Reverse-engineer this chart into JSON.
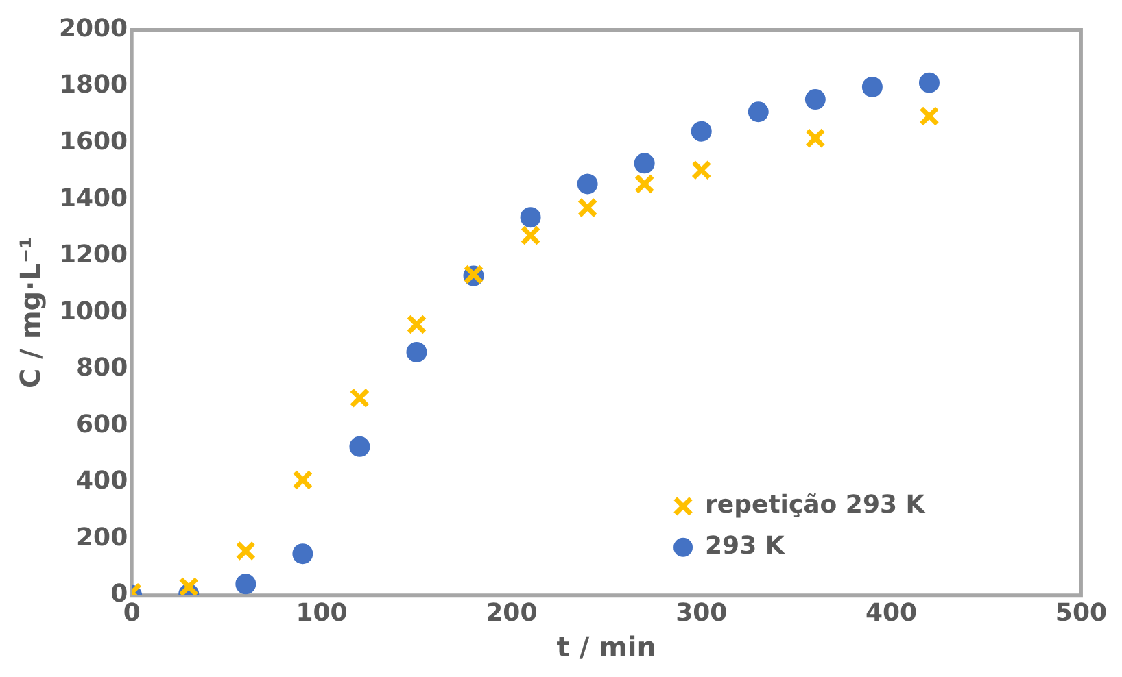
{
  "chart_data": {
    "type": "scatter",
    "xlabel": "t / min",
    "ylabel": "C / mg·L⁻¹",
    "xlim": [
      0,
      500
    ],
    "ylim": [
      0,
      2000
    ],
    "xticks": [
      0,
      100,
      200,
      300,
      400,
      500
    ],
    "yticks": [
      0,
      200,
      400,
      600,
      800,
      1000,
      1200,
      1400,
      1600,
      1800,
      2000
    ],
    "grid": false,
    "legend": "bottom right",
    "series": [
      {
        "name": "repetição 293 K",
        "color": "#ffc000",
        "marker": "cross",
        "x": [
          0,
          30,
          60,
          90,
          120,
          150,
          180,
          210,
          240,
          270,
          300,
          360,
          420
        ],
        "values": [
          10,
          30,
          157,
          408,
          698,
          958,
          1135,
          1273,
          1371,
          1455,
          1504,
          1617,
          1695
        ]
      },
      {
        "name": "293 K",
        "color": "#4472c4",
        "marker": "circle",
        "x": [
          0,
          30,
          60,
          90,
          120,
          150,
          180,
          210,
          240,
          270,
          300,
          330,
          360,
          390,
          420
        ],
        "values": [
          0,
          5,
          40,
          147,
          526,
          860,
          1130,
          1337,
          1455,
          1528,
          1641,
          1710,
          1754,
          1798,
          1813
        ]
      }
    ]
  }
}
